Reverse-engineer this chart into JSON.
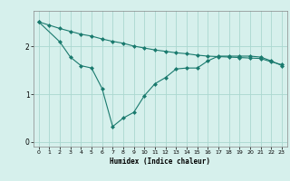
{
  "xlabel": "Humidex (Indice chaleur)",
  "background_color": "#d6f0ec",
  "grid_color": "#aad8d0",
  "line_color": "#1a7a6e",
  "x_line1": [
    0,
    1,
    2,
    3,
    4,
    5,
    6,
    7,
    8,
    9,
    10,
    11,
    12,
    13,
    14,
    15,
    16,
    17,
    18,
    19,
    20,
    21,
    22,
    23
  ],
  "y_line1": [
    2.52,
    2.45,
    2.38,
    2.32,
    2.26,
    2.22,
    2.16,
    2.11,
    2.07,
    2.01,
    1.97,
    1.93,
    1.9,
    1.87,
    1.85,
    1.82,
    1.8,
    1.79,
    1.78,
    1.77,
    1.76,
    1.75,
    1.68,
    1.62
  ],
  "x_line2": [
    0,
    2,
    3,
    4,
    5,
    6,
    7,
    8,
    9,
    10,
    11,
    12,
    13,
    14,
    15,
    16,
    17,
    18,
    19,
    20,
    21,
    22,
    23
  ],
  "y_line2": [
    2.52,
    2.1,
    1.78,
    1.6,
    1.55,
    1.12,
    0.32,
    0.5,
    0.62,
    0.97,
    1.22,
    1.35,
    1.53,
    1.55,
    1.55,
    1.7,
    1.8,
    1.8,
    1.8,
    1.8,
    1.78,
    1.7,
    1.6
  ],
  "ylim": [
    -0.1,
    2.75
  ],
  "xlim": [
    -0.5,
    23.5
  ],
  "yticks": [
    0,
    1,
    2
  ],
  "xticks": [
    0,
    1,
    2,
    3,
    4,
    5,
    6,
    7,
    8,
    9,
    10,
    11,
    12,
    13,
    14,
    15,
    16,
    17,
    18,
    19,
    20,
    21,
    22,
    23
  ]
}
